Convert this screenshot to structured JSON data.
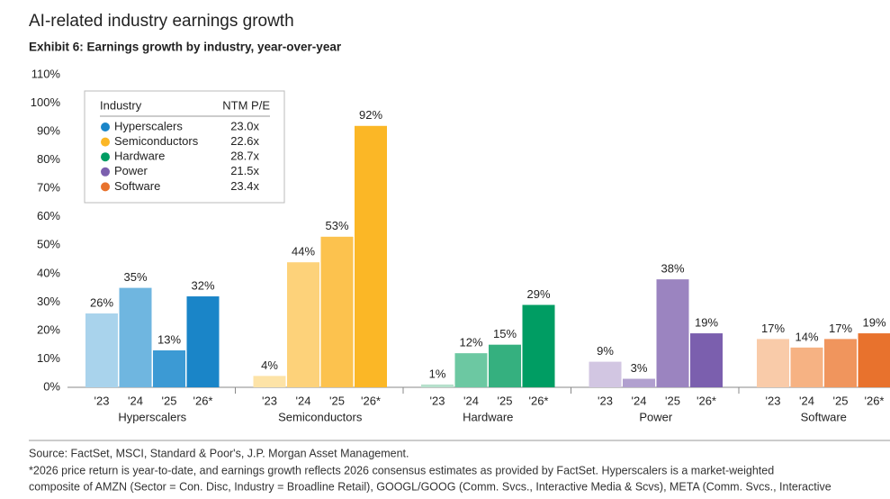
{
  "chart_data": {
    "type": "grouped-bar",
    "title": "AI-related industry earnings growth",
    "subtitle": "Exhibit 6: Earnings growth by industry, year-over-year",
    "categories": [
      "'23",
      "'24",
      "'25",
      "'26*"
    ],
    "ylim": [
      0,
      110
    ],
    "yticks": [
      {
        "value": 0,
        "label": "0%"
      },
      {
        "value": 10,
        "label": "10%"
      },
      {
        "value": 20,
        "label": "20%"
      },
      {
        "value": 30,
        "label": "30%"
      },
      {
        "value": 40,
        "label": "40%"
      },
      {
        "value": 50,
        "label": "50%"
      },
      {
        "value": 60,
        "label": "60%"
      },
      {
        "value": 70,
        "label": "70%"
      },
      {
        "value": 80,
        "label": "80%"
      },
      {
        "value": 90,
        "label": "90%"
      },
      {
        "value": 100,
        "label": "100%"
      },
      {
        "value": 110,
        "label": "110%"
      }
    ],
    "grid": false,
    "legend": {
      "header": "Industry",
      "pe_header": "NTM P/E"
    },
    "series": [
      {
        "name": "Hyperscalers",
        "pe": "23.0x",
        "color": "#1a85c8",
        "colors": [
          "#a9d3ec",
          "#6fb6e0",
          "#3c9ad4",
          "#1a85c8"
        ],
        "values": [
          26,
          35,
          13,
          32
        ],
        "value_labels": [
          "26%",
          "35%",
          "13%",
          "32%"
        ]
      },
      {
        "name": "Semiconductors",
        "pe": "22.6x",
        "color": "#fbb726",
        "colors": [
          "#fde3a7",
          "#fdd27a",
          "#fcc24e",
          "#fbb726"
        ],
        "values": [
          4,
          44,
          53,
          92
        ],
        "value_labels": [
          "4%",
          "44%",
          "53%",
          "92%"
        ]
      },
      {
        "name": "Hardware",
        "pe": "28.7x",
        "color": "#009d63",
        "colors": [
          "#b6e0cc",
          "#6cc8a2",
          "#35b07f",
          "#009d63"
        ],
        "values": [
          1,
          12,
          15,
          29
        ],
        "value_labels": [
          "1%",
          "12%",
          "15%",
          "29%"
        ]
      },
      {
        "name": "Power",
        "pe": "21.5x",
        "color": "#7b5fae",
        "colors": [
          "#d2c6e2",
          "#b1a0cf",
          "#9b84c0",
          "#7b5fae"
        ],
        "values": [
          9,
          3,
          38,
          19
        ],
        "value_labels": [
          "9%",
          "3%",
          "38%",
          "19%"
        ]
      },
      {
        "name": "Software",
        "pe": "23.4x",
        "color": "#e8722d",
        "colors": [
          "#f9cba9",
          "#f6b283",
          "#f0955d",
          "#e8722d"
        ],
        "values": [
          17,
          14,
          17,
          19
        ],
        "value_labels": [
          "17%",
          "14%",
          "17%",
          "19%"
        ]
      }
    ],
    "source": "Source: FactSet, MSCI, Standard & Poor's, J.P. Morgan Asset Management.",
    "footnotes": [
      "*2026 price return is year-to-date, and earnings growth reflects 2026 consensus estimates as provided by FactSet. Hyperscalers is a market-weighted",
      "composite of AMZN (Sector = Con. Disc, Industry = Broadline Retail), GOOGL/GOOG (Comm. Svcs., Interactive Media & Scvs), META (Comm. Svcs., Interactive"
    ]
  }
}
